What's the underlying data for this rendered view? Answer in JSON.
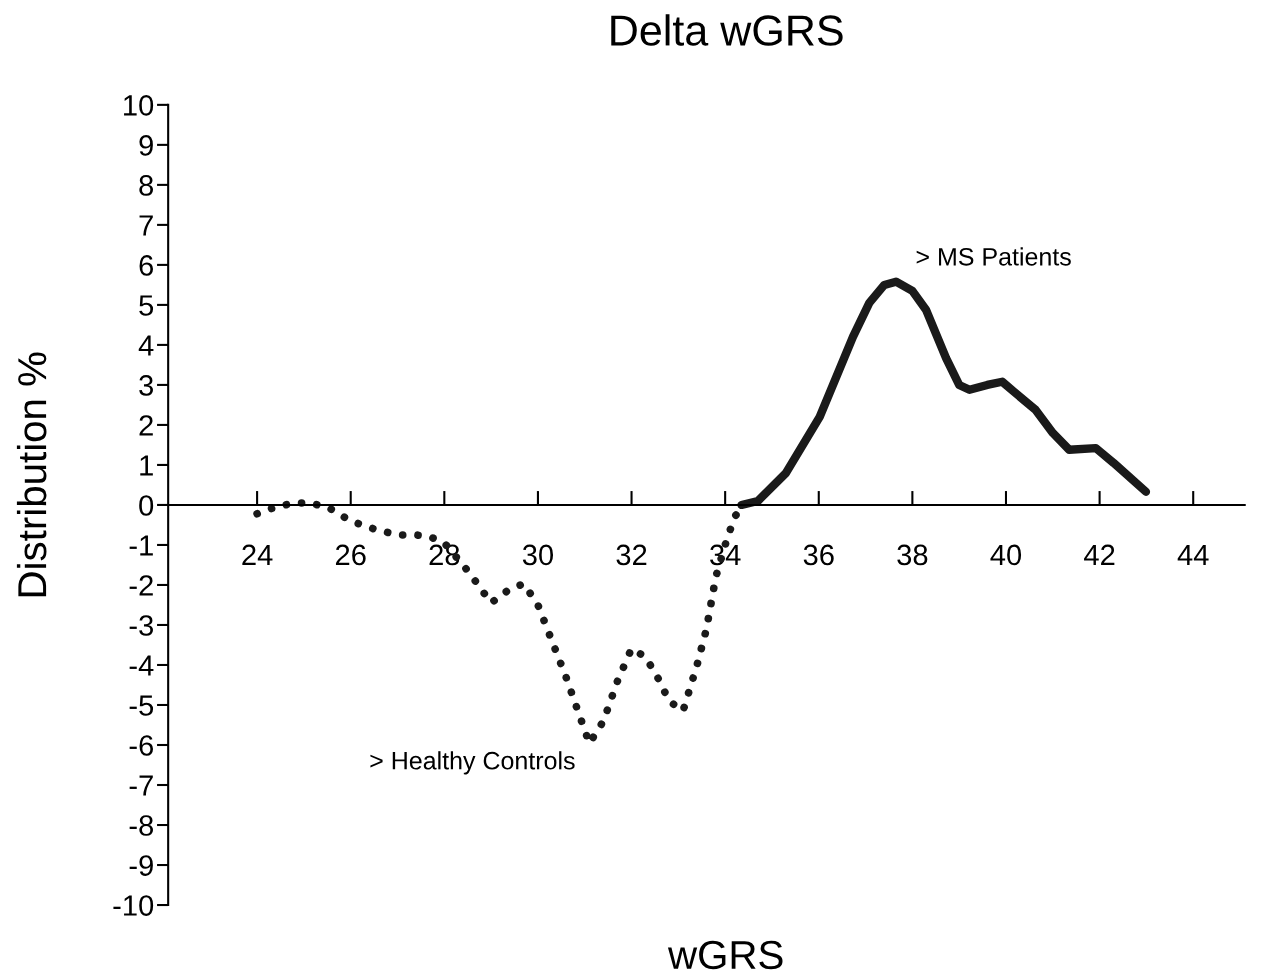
{
  "chart_data": {
    "type": "line",
    "title": "Delta wGRS",
    "xlabel": "wGRS",
    "ylabel": "Distribution %",
    "xlim": [
      22.1,
      45.1
    ],
    "xticks": [
      24,
      26,
      28,
      30,
      32,
      34,
      36,
      38,
      40,
      42,
      44
    ],
    "ylim": [
      -10,
      10
    ],
    "yticks": [
      -10,
      -9,
      -8,
      -7,
      -6,
      -5,
      -4,
      -3,
      -2,
      -1,
      0,
      1,
      2,
      3,
      4,
      5,
      6,
      7,
      8,
      9,
      10
    ],
    "grid": false,
    "legend": false,
    "series": [
      {
        "name": "> Healthy Controls",
        "color": "#1a1a1a",
        "line_style": "dotted",
        "x": [
          24.0,
          24.4,
          24.8,
          25.1,
          25.5,
          26.0,
          26.5,
          27.0,
          27.4,
          27.7,
          28.0,
          28.4,
          28.6,
          29.0,
          29.4,
          29.7,
          30.0,
          30.3,
          30.6,
          30.9,
          31.1,
          31.4,
          31.7,
          32.0,
          32.3,
          32.6,
          32.8,
          33.1,
          33.4,
          33.6,
          33.8,
          34.0,
          34.2,
          34.4
        ],
        "values": [
          -0.22,
          -0.05,
          0.05,
          0.05,
          -0.05,
          -0.4,
          -0.6,
          -0.75,
          -0.75,
          -0.8,
          -0.95,
          -1.5,
          -1.8,
          -2.45,
          -2.1,
          -1.97,
          -2.5,
          -3.4,
          -4.3,
          -5.3,
          -5.96,
          -5.4,
          -4.4,
          -3.59,
          -3.8,
          -4.4,
          -4.9,
          -5.15,
          -4.0,
          -3.1,
          -1.8,
          -1.0,
          -0.3,
          0.0
        ]
      },
      {
        "name": "> MS Patients",
        "color": "#1a1a1a",
        "line_style": "solid",
        "x": [
          34.35,
          34.7,
          35.3,
          36.02,
          36.73,
          37.08,
          37.4,
          37.65,
          38.0,
          38.29,
          38.72,
          39.0,
          39.22,
          39.6,
          39.92,
          40.2,
          40.63,
          41.0,
          41.35,
          41.92,
          42.3,
          42.99
        ],
        "values": [
          0.0,
          0.1,
          0.8,
          2.2,
          4.2,
          5.05,
          5.5,
          5.58,
          5.35,
          4.88,
          3.67,
          3.0,
          2.88,
          3.0,
          3.08,
          2.8,
          2.38,
          1.8,
          1.38,
          1.42,
          1.05,
          0.33
        ]
      }
    ]
  }
}
